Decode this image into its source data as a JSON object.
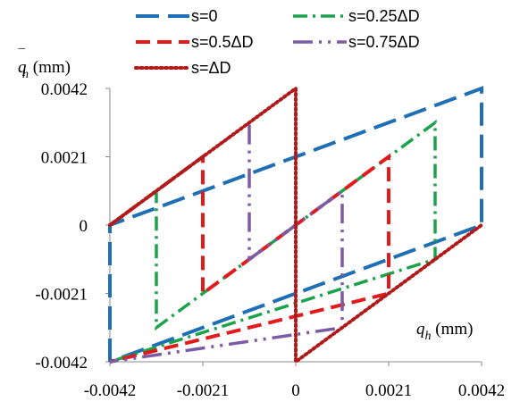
{
  "chart_data": {
    "type": "line",
    "xlabel": {
      "var": "q",
      "sub": "h",
      "unit": " (mm)"
    },
    "ylabel": {
      "var": "q",
      "bar": "¯",
      "sub": "h",
      "unit": " (mm)"
    },
    "xlim": [
      -0.0042,
      0.0042
    ],
    "ylim": [
      -0.0042,
      0.0042
    ],
    "x_tick_labels": [
      "-0.0042",
      "-0.0021",
      "0",
      "0.0021",
      "0.0042"
    ],
    "y_tick_labels": [
      "0.0042",
      "0.0021",
      "0",
      "-0.0021",
      "-0.0042"
    ],
    "x_ticks": [
      -0.0042,
      -0.0021,
      0,
      0.0021,
      0.0042
    ],
    "y_ticks": [
      0.0042,
      0.0021,
      0,
      -0.0021,
      -0.0042
    ],
    "legend_position": "top",
    "series": [
      {
        "name": "s=0",
        "color": "#1f6fb5",
        "dash": "long-dash",
        "x": [
          -0.0042,
          -0.0042,
          0.0042,
          0.0042,
          -0.0042
        ],
        "y": [
          -0.0042,
          0,
          0.0042,
          0,
          -0.0042
        ]
      },
      {
        "name": "s=0.25ΔD",
        "color": "#1aa34a",
        "dash": "dash-dot",
        "x": [
          -0.0042,
          -0.00315,
          -0.00315,
          0.00315,
          0.00315,
          -0.0042
        ],
        "y": [
          0,
          0.00105,
          -0.00315,
          0.00315,
          -0.00105,
          -0.0042
        ]
      },
      {
        "name": "s=0.5ΔD",
        "color": "#e31a1c",
        "dash": "dash",
        "x": [
          -0.0042,
          -0.0021,
          -0.0021,
          0.0021,
          0.0021,
          -0.0042
        ],
        "y": [
          0,
          0.0021,
          -0.0021,
          0.0021,
          -0.0021,
          -0.0042
        ]
      },
      {
        "name": "s=0.75ΔD",
        "color": "#7b5aa6",
        "dash": "dash-dot-dot",
        "x": [
          -0.0042,
          -0.00105,
          -0.00105,
          0.00105,
          0.00105,
          -0.0042
        ],
        "y": [
          0,
          0.00315,
          -0.00105,
          0.00105,
          -0.00315,
          -0.0042
        ]
      },
      {
        "name": "s=ΔD",
        "color": "#b01a1a",
        "dash": "dotted",
        "x": [
          -0.0042,
          0,
          0,
          0.0042
        ],
        "y": [
          0,
          0.0042,
          -0.0042,
          0
        ]
      }
    ]
  }
}
